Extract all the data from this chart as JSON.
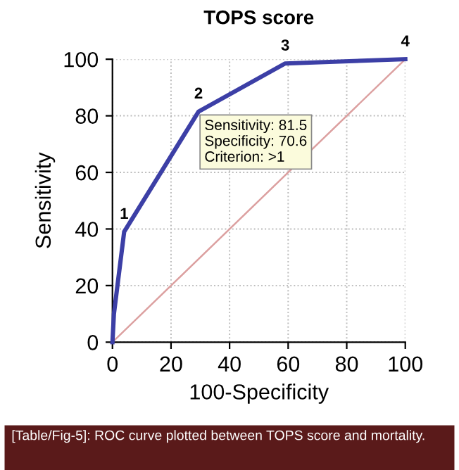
{
  "chart_data": {
    "type": "line",
    "title": "TOPS score",
    "xlabel": "100-Specificity",
    "ylabel": "Sensitivity",
    "xlim": [
      0,
      100
    ],
    "ylim": [
      0,
      100
    ],
    "xticks": [
      0,
      20,
      40,
      60,
      80,
      100
    ],
    "yticks": [
      0,
      20,
      40,
      60,
      80,
      100
    ],
    "grid": true,
    "marker": "none",
    "series": [
      {
        "color": "#3c3fa6",
        "x": [
          0,
          0.5,
          4,
          29.4,
          59,
          100
        ],
        "values": [
          0,
          10,
          39,
          81.5,
          98.5,
          100
        ]
      },
      {
        "color": "#dca0a0",
        "x": [
          0,
          100
        ],
        "values": [
          0,
          100
        ]
      }
    ],
    "annotations": [
      {
        "text": "1",
        "x": 4,
        "y": 39
      },
      {
        "text": "2",
        "x": 29.4,
        "y": 81.5
      },
      {
        "text": "3",
        "x": 59,
        "y": 98.5
      },
      {
        "text": "4",
        "x": 100,
        "y": 100
      },
      {
        "text": "Sensitivity: 81.5\nSpecificity: 70.6\nCriterion: >1",
        "x": 29.4,
        "y": 81.5
      },
      "[Table/Fig-5]: ROC curve plotted between TOPS score and mortality."
    ]
  }
}
